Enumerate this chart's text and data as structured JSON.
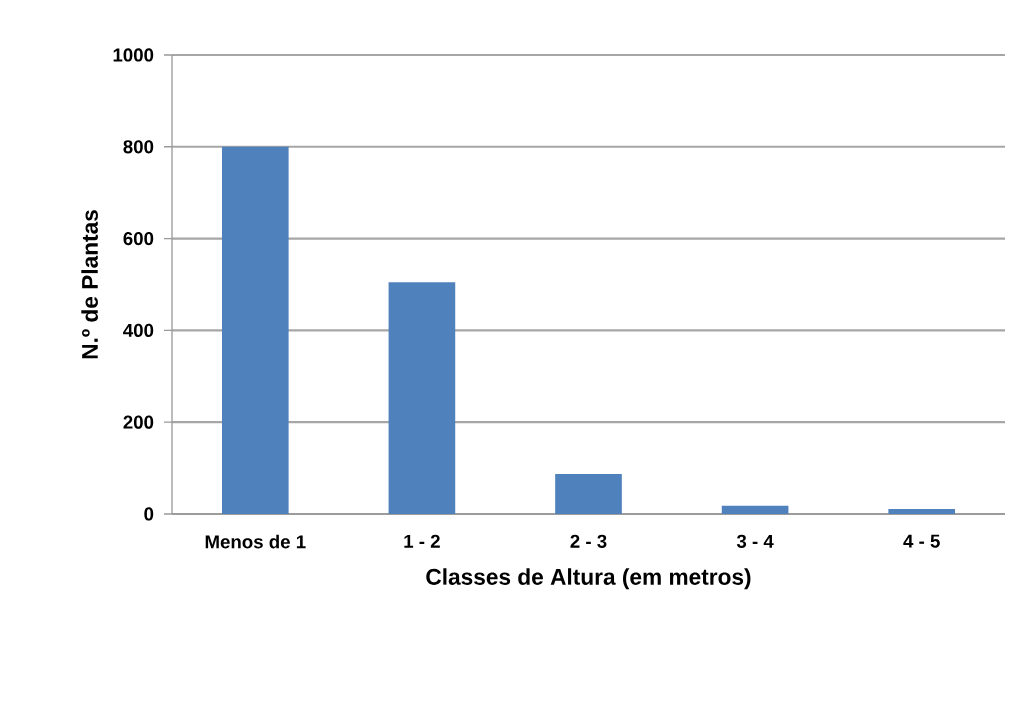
{
  "chart_data": {
    "type": "bar",
    "xlabel": "Classes de Altura (em metros)",
    "ylabel": "N.º de Plantas",
    "categories": [
      "Menos de 1",
      "1 - 2",
      "2 - 3",
      "3 - 4",
      "4 - 5"
    ],
    "values": [
      800,
      505,
      87,
      18,
      11
    ],
    "color": "#4f81bd",
    "ylim": [
      0,
      1000
    ],
    "yticks": [
      0,
      200,
      400,
      600,
      800,
      1000
    ],
    "grid": "y",
    "legend": false
  }
}
